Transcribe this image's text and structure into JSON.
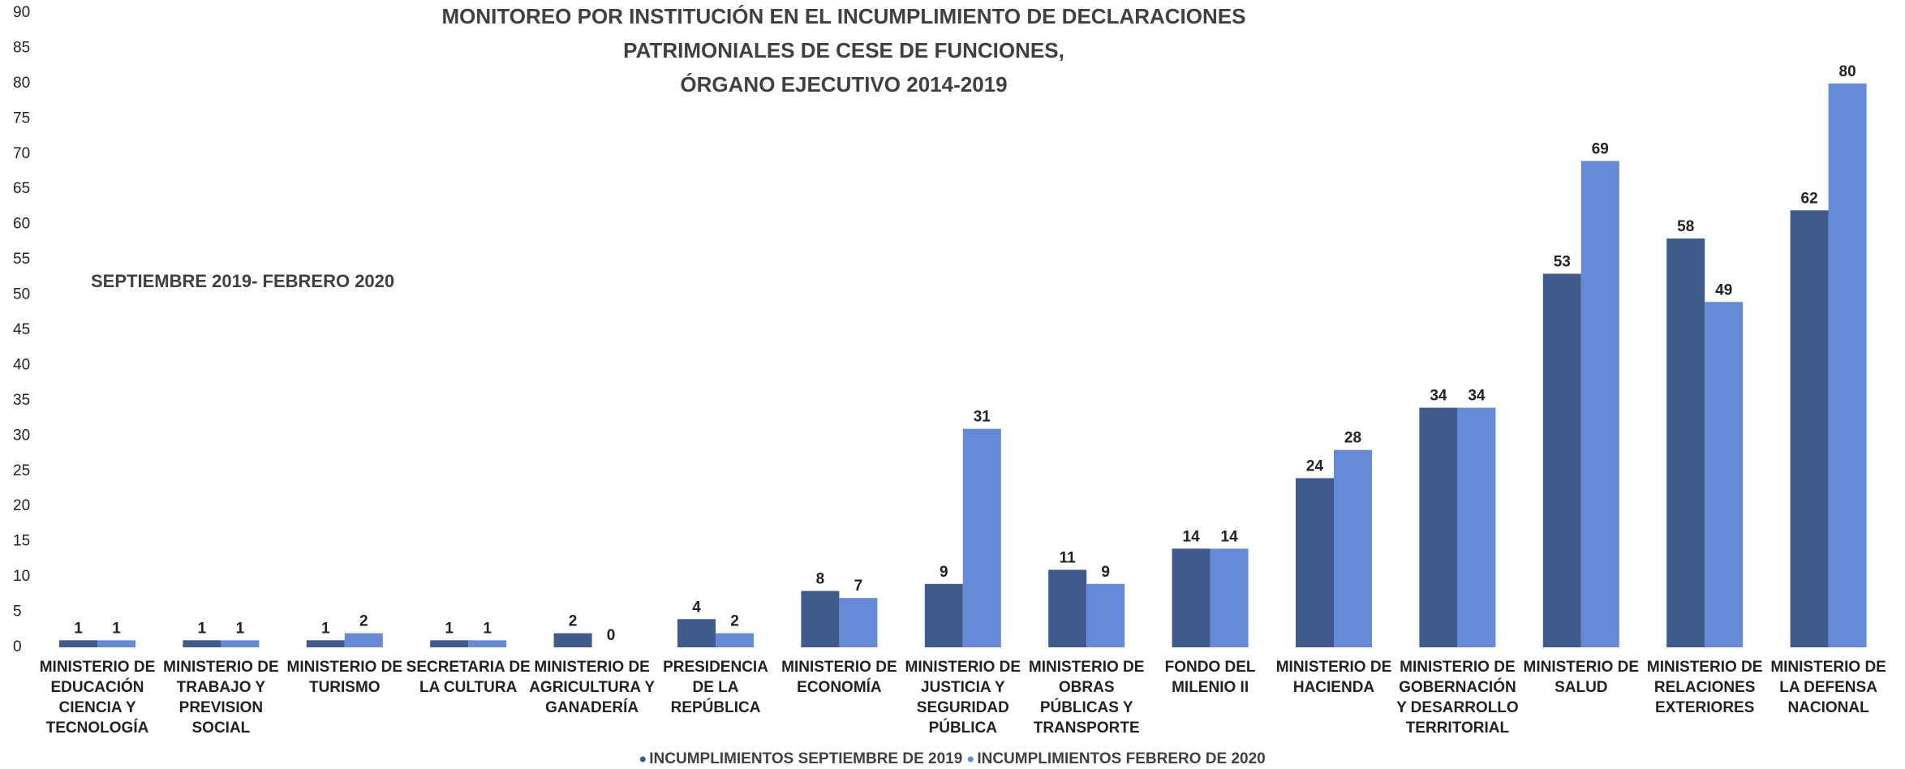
{
  "chart_data": {
    "type": "bar",
    "title": [
      "MONITOREO POR INSTITUCIÓN EN EL INCUMPLIMIENTO DE DECLARACIONES",
      "PATRIMONIALES  DE CESE DE FUNCIONES,",
      "ÓRGANO EJECUTIVO 2014-2019"
    ],
    "subtitle": "SEPTIEMBRE  2019- FEBRERO 2020",
    "categories": [
      "MINISTERIO DE EDUCACIÓN CIENCIA Y TECNOLOGÍA",
      "MINISTERIO DE TRABAJO Y PREVISION SOCIAL",
      "MINISTERIO DE TURISMO",
      "SECRETARIA DE LA CULTURA",
      "MINISTERIO DE AGRICULTURA Y GANADERÍA",
      "PRESIDENCIA DE LA REPÚBLICA",
      "MINISTERIO DE ECONOMÍA",
      "MINISTERIO DE JUSTICIA Y SEGURIDAD PÚBLICA",
      "MINISTERIO DE OBRAS PÚBLICAS Y TRANSPORTE",
      "FONDO DEL MILENIO II",
      "MINISTERIO DE HACIENDA",
      "MINISTERIO DE GOBERNACIÓN Y DESARROLLO TERRITORIAL",
      "MINISTERIO DE SALUD",
      "MINISTERIO DE RELACIONES EXTERIORES",
      "MINISTERIO DE LA DEFENSA NACIONAL"
    ],
    "series": [
      {
        "name": "INCUMPLIMIENTOS SEPTIEMBRE DE 2019",
        "color": "#3f5a8b",
        "values": [
          1,
          1,
          1,
          1,
          2,
          4,
          8,
          9,
          11,
          14,
          24,
          34,
          53,
          58,
          62
        ]
      },
      {
        "name": "INCUMPLIMIENTOS FEBRERO DE 2020",
        "color": "#6689d8",
        "values": [
          1,
          1,
          2,
          1,
          0,
          2,
          7,
          31,
          9,
          14,
          28,
          34,
          69,
          49,
          80
        ]
      }
    ],
    "ylim": [
      0,
      90
    ],
    "yticks": [
      0,
      5,
      10,
      15,
      20,
      25,
      30,
      35,
      40,
      45,
      50,
      55,
      60,
      65,
      70,
      75,
      80,
      85,
      90
    ],
    "grid": false,
    "legend": "bottom"
  }
}
